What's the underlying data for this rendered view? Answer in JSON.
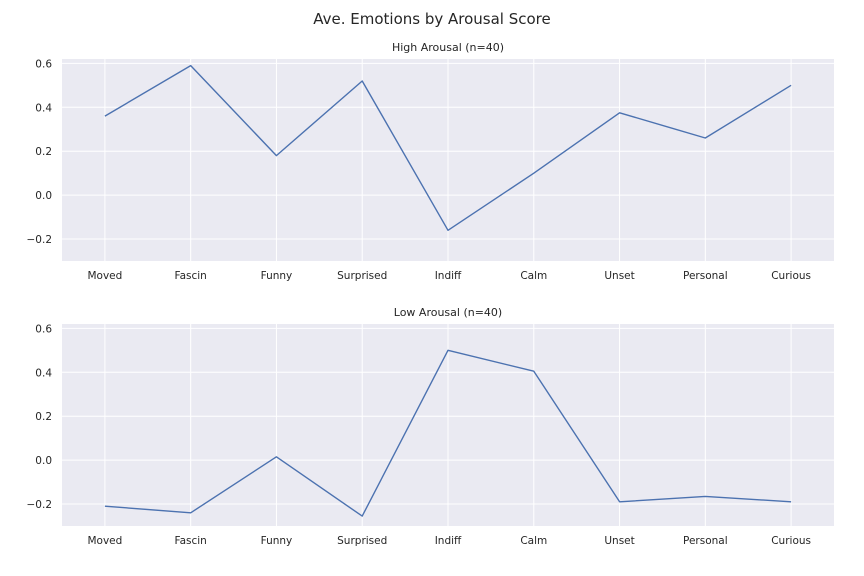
{
  "figure": {
    "title": "Ave. Emotions by Arousal Score"
  },
  "chart_data": [
    {
      "type": "line",
      "title": "High Arousal (n=40)",
      "xlabel": "",
      "ylabel": "",
      "categories": [
        "Moved",
        "Fascin",
        "Funny",
        "Surprised",
        "Indiff",
        "Calm",
        "Unset",
        "Personal",
        "Curious"
      ],
      "values": [
        0.36,
        0.59,
        0.18,
        0.52,
        -0.16,
        0.1,
        0.375,
        0.26,
        0.5
      ],
      "ylim": [
        -0.3,
        0.62
      ],
      "yticks": [
        -0.2,
        0.0,
        0.2,
        0.4,
        0.6
      ],
      "ytick_labels": [
        "−0.2",
        "0.0",
        "0.2",
        "0.4",
        "0.6"
      ],
      "grid": true,
      "color": "#4c72b0"
    },
    {
      "type": "line",
      "title": "Low Arousal (n=40)",
      "xlabel": "",
      "ylabel": "",
      "categories": [
        "Moved",
        "Fascin",
        "Funny",
        "Surprised",
        "Indiff",
        "Calm",
        "Unset",
        "Personal",
        "Curious"
      ],
      "values": [
        -0.21,
        -0.24,
        0.015,
        -0.255,
        0.5,
        0.405,
        -0.19,
        -0.165,
        -0.19
      ],
      "ylim": [
        -0.3,
        0.62
      ],
      "yticks": [
        -0.2,
        0.0,
        0.2,
        0.4,
        0.6
      ],
      "ytick_labels": [
        "−0.2",
        "0.0",
        "0.2",
        "0.4",
        "0.6"
      ],
      "grid": true,
      "color": "#4c72b0"
    }
  ]
}
